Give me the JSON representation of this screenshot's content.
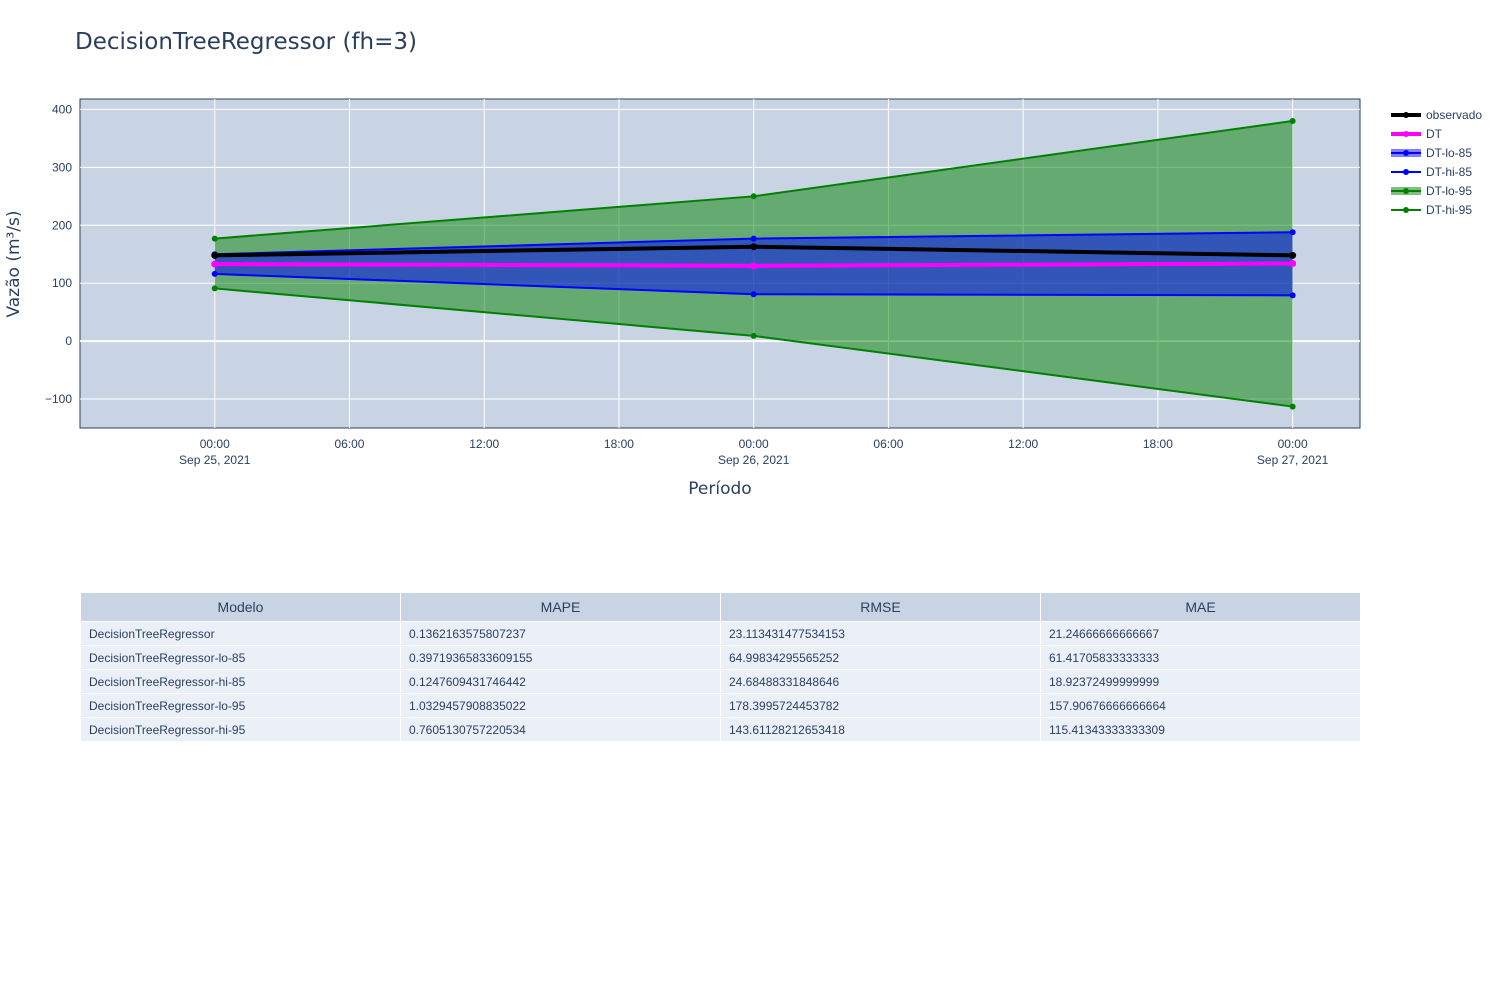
{
  "chart_data": {
    "type": "line",
    "title": "DecisionTreeRegressor (fh=3)",
    "xlabel": "Período",
    "ylabel": "Vazão (m³/s)",
    "x": [
      "2021-09-25T00:00",
      "2021-09-26T00:00",
      "2021-09-27T00:00"
    ],
    "xlim": [
      "2021-09-24T18:00",
      "2021-09-27T03:00"
    ],
    "ylim": [
      -150,
      418
    ],
    "yticks": [
      -100,
      0,
      100,
      200,
      300,
      400
    ],
    "ytick_labels": [
      "−100",
      "0",
      "100",
      "200",
      "300",
      "400"
    ],
    "xticks": [
      {
        "t": "2021-09-25T00:00",
        "l1": "00:00",
        "l2": "Sep 25, 2021"
      },
      {
        "t": "2021-09-25T06:00",
        "l1": "06:00",
        "l2": ""
      },
      {
        "t": "2021-09-25T12:00",
        "l1": "12:00",
        "l2": ""
      },
      {
        "t": "2021-09-25T18:00",
        "l1": "18:00",
        "l2": ""
      },
      {
        "t": "2021-09-26T00:00",
        "l1": "00:00",
        "l2": "Sep 26, 2021"
      },
      {
        "t": "2021-09-26T06:00",
        "l1": "06:00",
        "l2": ""
      },
      {
        "t": "2021-09-26T12:00",
        "l1": "12:00",
        "l2": ""
      },
      {
        "t": "2021-09-26T18:00",
        "l1": "18:00",
        "l2": ""
      },
      {
        "t": "2021-09-27T00:00",
        "l1": "00:00",
        "l2": "Sep 27, 2021"
      }
    ],
    "grid": true,
    "legend_position": "right",
    "series": [
      {
        "name": "observado",
        "values": [
          148,
          163,
          148
        ],
        "color": "#000000",
        "kind": "line-thick"
      },
      {
        "name": "DT",
        "values": [
          133,
          130,
          134
        ],
        "color": "#ff00ff",
        "kind": "line-thick"
      },
      {
        "name": "DT-lo-85",
        "values": [
          116,
          81,
          79
        ],
        "color": "#0000ff",
        "kind": "band",
        "fill": "rgba(0,0,255,0.5)"
      },
      {
        "name": "DT-hi-85",
        "values": [
          150,
          177,
          188
        ],
        "color": "#0000ff",
        "kind": "line"
      },
      {
        "name": "DT-lo-95",
        "values": [
          91,
          9,
          -113
        ],
        "color": "#008000",
        "kind": "band",
        "fill": "rgba(0,128,0,0.5)"
      },
      {
        "name": "DT-hi-95",
        "values": [
          177,
          250,
          380
        ],
        "color": "#008000",
        "kind": "line"
      }
    ]
  },
  "colors": {
    "plot_bg": "#c8d4e3",
    "grid": "#ffffff",
    "text": "#2a3f5f"
  },
  "table": {
    "headers": [
      "Modelo",
      "MAPE",
      "RMSE",
      "MAE"
    ],
    "rows": [
      [
        "DecisionTreeRegressor",
        "0.1362163575807237",
        "23.113431477534153",
        "21.24666666666667"
      ],
      [
        "DecisionTreeRegressor-lo-85",
        "0.39719365833609155",
        "64.99834295565252",
        "61.41705833333333"
      ],
      [
        "DecisionTreeRegressor-hi-85",
        "0.1247609431746442",
        "24.68488331848646",
        "18.92372499999999"
      ],
      [
        "DecisionTreeRegressor-lo-95",
        "1.0329457908835022",
        "178.3995724453782",
        "157.90676666666664"
      ],
      [
        "DecisionTreeRegressor-hi-95",
        "0.7605130757220534",
        "143.61128212653418",
        "115.41343333333309"
      ]
    ]
  }
}
